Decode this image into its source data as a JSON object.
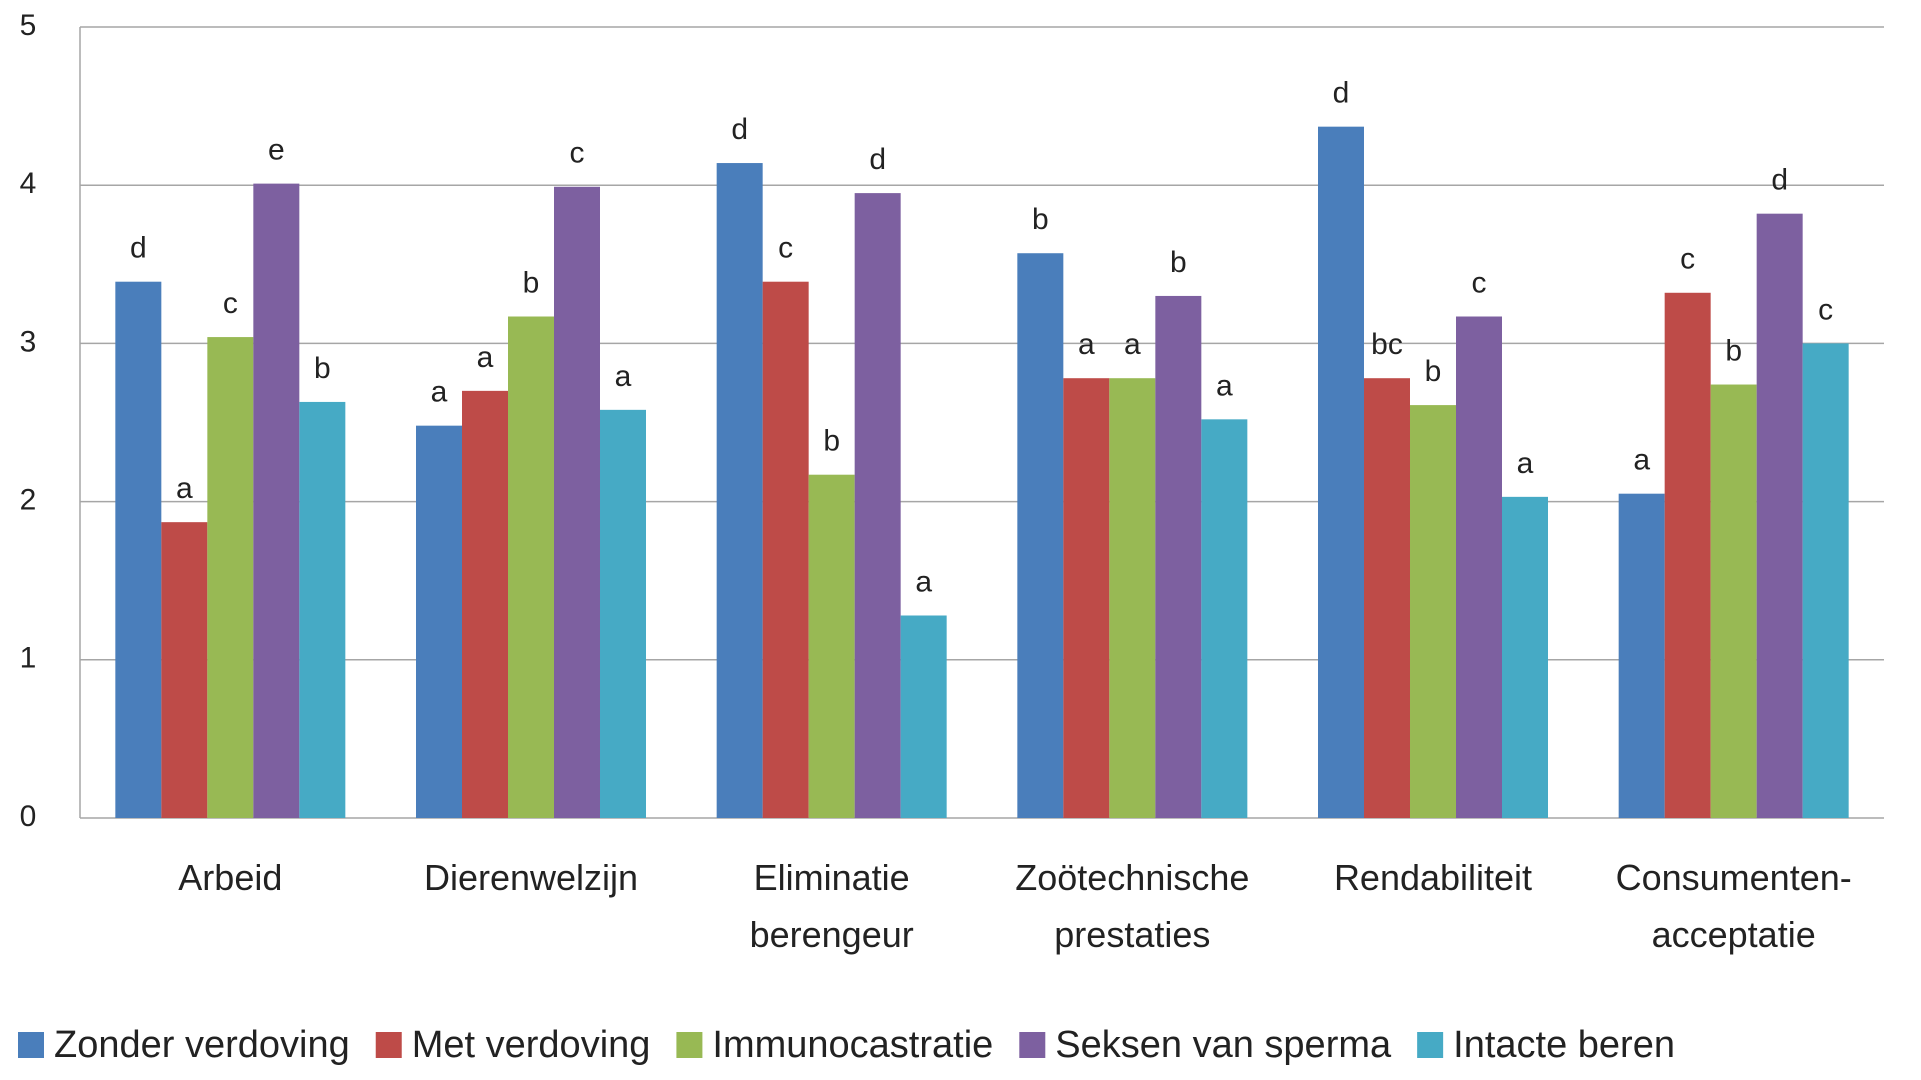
{
  "chart_data": {
    "type": "bar",
    "categories": [
      [
        "Arbeid"
      ],
      [
        "Dierenwelzijn"
      ],
      [
        "Eliminatie",
        "berengeur"
      ],
      [
        "Zoötechnische",
        "prestaties"
      ],
      [
        "Rendabiliteit"
      ],
      [
        "Consumenten-",
        "acceptatie"
      ]
    ],
    "series": [
      {
        "name": "Zonder verdoving",
        "color": "#4a7ebb",
        "values": [
          3.39,
          2.48,
          4.14,
          3.57,
          4.37,
          2.05
        ],
        "letters": [
          "d",
          "a",
          "d",
          "b",
          "d",
          "a"
        ]
      },
      {
        "name": "Met verdoving",
        "color": "#be4b48",
        "values": [
          1.87,
          2.7,
          3.39,
          2.78,
          2.78,
          3.32
        ],
        "letters": [
          "a",
          "a",
          "c",
          "a",
          "bc",
          "c"
        ]
      },
      {
        "name": "Immunocastratie",
        "color": "#98b954",
        "values": [
          3.04,
          3.17,
          2.17,
          2.78,
          2.61,
          2.74
        ],
        "letters": [
          "c",
          "b",
          "b",
          "a",
          "b",
          "b"
        ]
      },
      {
        "name": "Seksen van sperma",
        "color": "#7d60a0",
        "values": [
          4.01,
          3.99,
          3.95,
          3.3,
          3.17,
          3.82
        ],
        "letters": [
          "e",
          "c",
          "d",
          "b",
          "c",
          "d"
        ]
      },
      {
        "name": "Intacte beren",
        "color": "#46aac5",
        "values": [
          2.63,
          2.58,
          1.28,
          2.52,
          2.03,
          3.0
        ],
        "letters": [
          "b",
          "a",
          "a",
          "a",
          "a",
          "c"
        ]
      }
    ],
    "ylim": [
      0,
      5
    ],
    "yticks": [
      0,
      1,
      2,
      3,
      4,
      5
    ],
    "grid": true,
    "legend": "bottom"
  }
}
